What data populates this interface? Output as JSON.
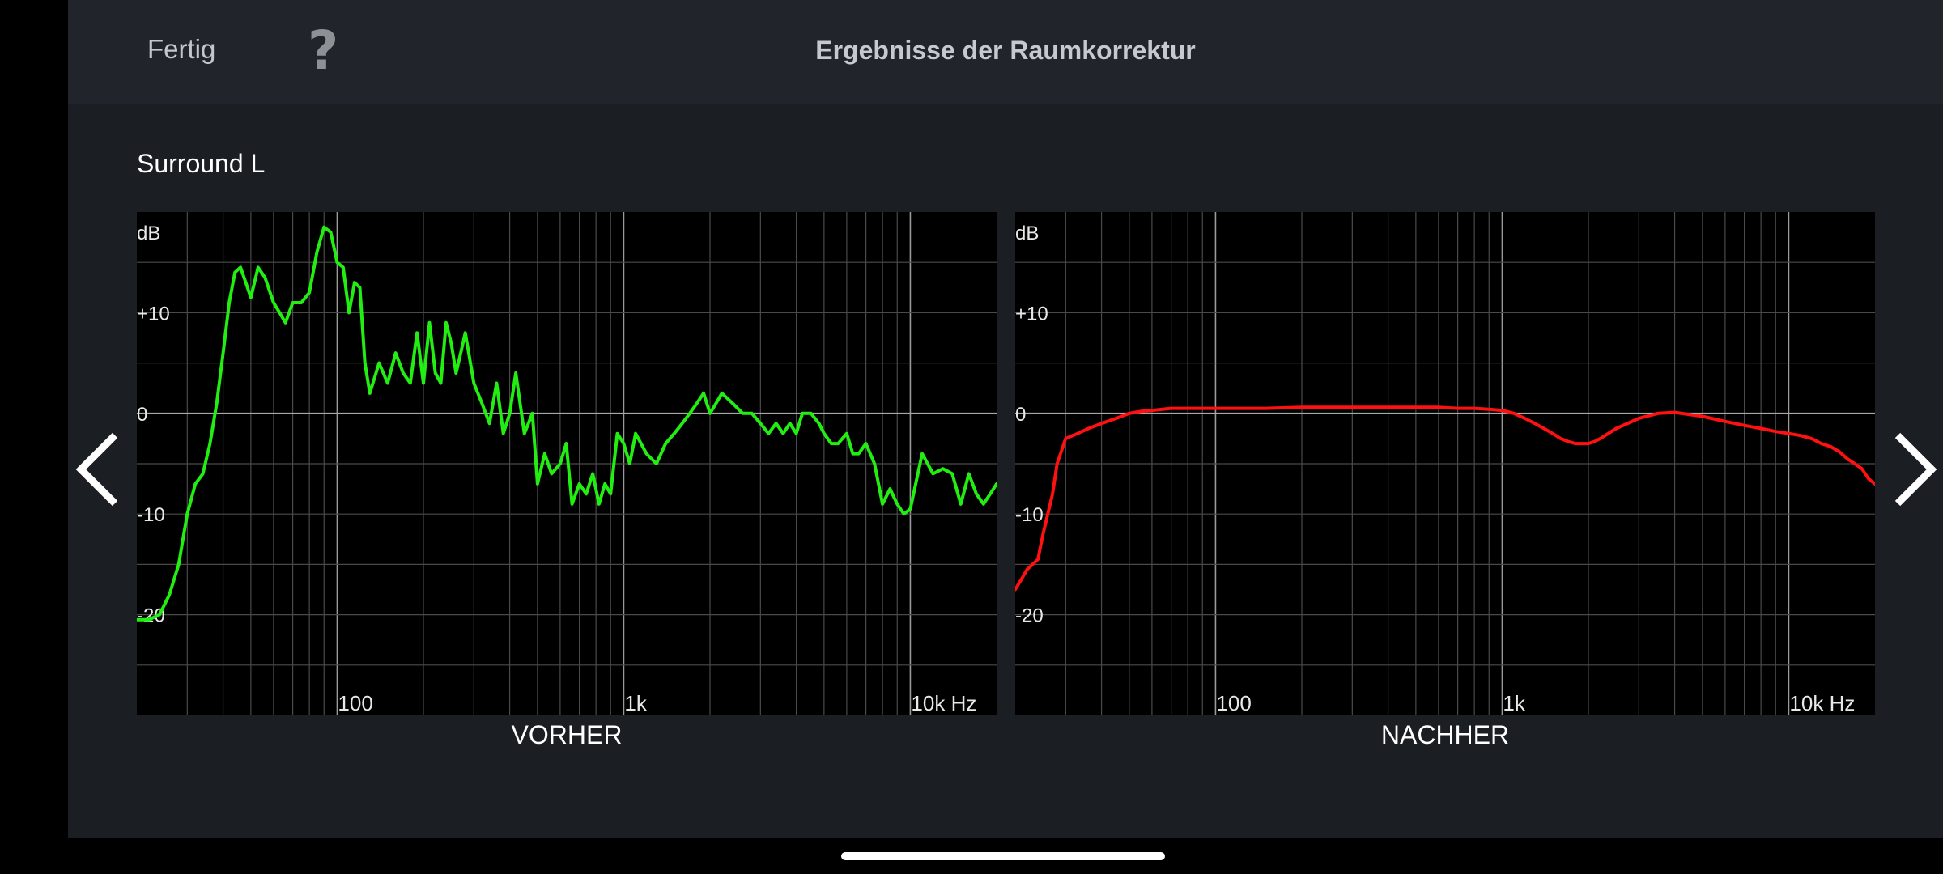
{
  "topbar": {
    "done_label": "Fertig",
    "help_label": "?",
    "title": "Ergebnisse der Raumkorrektur"
  },
  "speaker": "Surround L",
  "colors": {
    "before": "#22ee11",
    "after": "#ff1111",
    "grid": "#4a4a4a",
    "grid_major": "#9a9a9a",
    "zero_line": "#a8a8a8"
  },
  "icons": {
    "prev": "chevron-left-icon",
    "next": "chevron-right-icon"
  },
  "chart_data": [
    {
      "type": "line",
      "panel_label": "VORHER",
      "ylabel": "dB",
      "y_ticks": [
        {
          "value": 10,
          "label": "+10"
        },
        {
          "value": 0,
          "label": "0"
        },
        {
          "value": -10,
          "label": "-10"
        },
        {
          "value": -20,
          "label": "-20"
        }
      ],
      "x_ticks": [
        {
          "value": 100,
          "label": "100"
        },
        {
          "value": 1000,
          "label": "1k"
        },
        {
          "value": 10000,
          "label": "10k Hz"
        }
      ],
      "xscale": "log",
      "xlim": [
        20,
        20000
      ],
      "ylim": [
        -30,
        20
      ],
      "grid": true,
      "series": [
        {
          "color": "before",
          "x": [
            20,
            22,
            24,
            26,
            28,
            30,
            32,
            34,
            36,
            38,
            40,
            42,
            44,
            46,
            48,
            50,
            53,
            56,
            60,
            63,
            66,
            70,
            75,
            80,
            85,
            90,
            95,
            100,
            105,
            110,
            115,
            120,
            125,
            130,
            140,
            150,
            160,
            170,
            180,
            190,
            200,
            210,
            220,
            230,
            240,
            250,
            260,
            270,
            280,
            300,
            320,
            340,
            360,
            380,
            400,
            420,
            450,
            480,
            500,
            530,
            560,
            600,
            630,
            660,
            700,
            740,
            780,
            820,
            860,
            900,
            950,
            1000,
            1050,
            1100,
            1200,
            1300,
            1400,
            1500,
            1600,
            1700,
            1800,
            1900,
            2000,
            2100,
            2200,
            2400,
            2600,
            2800,
            3000,
            3200,
            3400,
            3600,
            3800,
            4000,
            4200,
            4500,
            4800,
            5000,
            5300,
            5600,
            6000,
            6300,
            6600,
            7000,
            7500,
            8000,
            8500,
            9000,
            9500,
            10000,
            11000,
            12000,
            13000,
            14000,
            15000,
            16000,
            17000,
            18000,
            19000,
            20000
          ],
          "y": [
            -20.5,
            -20.5,
            -20,
            -18,
            -15,
            -10,
            -7,
            -6,
            -3,
            1,
            6,
            11,
            14,
            14.5,
            13,
            11.5,
            14.5,
            13.5,
            11,
            10,
            9,
            11,
            11,
            12,
            16,
            18.5,
            18,
            15,
            14.5,
            10,
            13,
            12.5,
            5,
            2,
            5,
            3,
            6,
            4,
            3,
            8,
            3,
            9,
            4,
            3,
            9,
            7,
            4,
            6,
            8,
            3,
            1,
            -1,
            3,
            -2,
            0,
            4,
            -2,
            0,
            -7,
            -4,
            -6,
            -5,
            -3,
            -9,
            -7,
            -8,
            -6,
            -9,
            -7,
            -8,
            -2,
            -3,
            -5,
            -2,
            -4,
            -5,
            -3,
            -2,
            -1,
            0,
            1,
            2,
            0,
            1,
            2,
            1,
            0,
            0,
            -1,
            -2,
            -1,
            -2,
            -1,
            -2,
            0,
            0,
            -1,
            -2,
            -3,
            -3,
            -2,
            -4,
            -4,
            -3,
            -5,
            -9,
            -7.5,
            -9,
            -10,
            -9.5,
            -4,
            -6,
            -5.5,
            -6,
            -9,
            -6,
            -8,
            -9,
            -8,
            -7
          ]
        }
      ]
    },
    {
      "type": "line",
      "panel_label": "NACHHER",
      "ylabel": "dB",
      "y_ticks": [
        {
          "value": 10,
          "label": "+10"
        },
        {
          "value": 0,
          "label": "0"
        },
        {
          "value": -10,
          "label": "-10"
        },
        {
          "value": -20,
          "label": "-20"
        }
      ],
      "x_ticks": [
        {
          "value": 100,
          "label": "100"
        },
        {
          "value": 1000,
          "label": "1k"
        },
        {
          "value": 10000,
          "label": "10k Hz"
        }
      ],
      "xscale": "log",
      "xlim": [
        20,
        20000
      ],
      "ylim": [
        -30,
        20
      ],
      "grid": true,
      "series": [
        {
          "color": "after",
          "x": [
            20,
            21,
            22,
            24,
            25,
            27,
            28,
            30,
            33,
            36,
            40,
            45,
            50,
            55,
            60,
            70,
            80,
            100,
            150,
            200,
            300,
            400,
            500,
            600,
            700,
            800,
            900,
            1000,
            1100,
            1200,
            1300,
            1400,
            1500,
            1600,
            1700,
            1800,
            1900,
            2000,
            2100,
            2200,
            2500,
            3000,
            3500,
            4000,
            5000,
            6000,
            7000,
            8000,
            9000,
            10000,
            11000,
            12000,
            13000,
            14000,
            15000,
            16000,
            17000,
            18000,
            19000,
            20000
          ],
          "y": [
            -17.5,
            -16.5,
            -15.5,
            -14.5,
            -12,
            -8,
            -5,
            -2.5,
            -2,
            -1.5,
            -1,
            -0.5,
            0,
            0.2,
            0.3,
            0.5,
            0.5,
            0.5,
            0.5,
            0.6,
            0.6,
            0.6,
            0.6,
            0.6,
            0.5,
            0.5,
            0.4,
            0.3,
            0,
            -0.5,
            -1,
            -1.5,
            -2,
            -2.5,
            -2.8,
            -3,
            -3,
            -3,
            -2.8,
            -2.5,
            -1.5,
            -0.5,
            0,
            0.1,
            -0.3,
            -0.8,
            -1.2,
            -1.5,
            -1.8,
            -2,
            -2.2,
            -2.5,
            -3,
            -3.3,
            -3.8,
            -4.5,
            -5,
            -5.5,
            -6.5,
            -7
          ]
        }
      ]
    }
  ]
}
